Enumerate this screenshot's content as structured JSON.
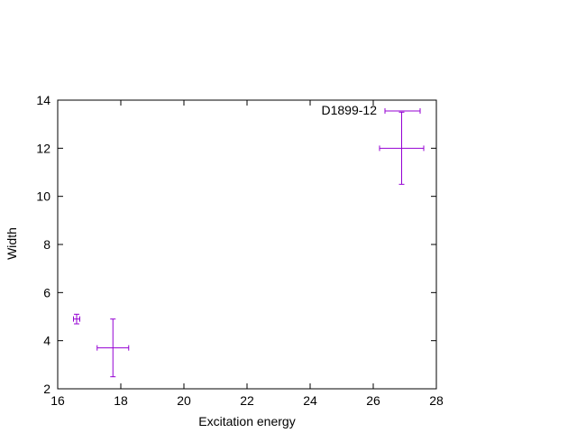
{
  "chart_data": {
    "type": "scatter",
    "title": "",
    "xlabel": "Excitation energy",
    "ylabel": "Width",
    "xlim": [
      16,
      28
    ],
    "ylim": [
      2,
      14
    ],
    "xticks": [
      16,
      18,
      20,
      22,
      24,
      26,
      28
    ],
    "yticks": [
      2,
      4,
      6,
      8,
      10,
      12,
      14
    ],
    "grid": false,
    "legend": "top-right",
    "color": "#9400d3",
    "series": [
      {
        "name": "D1899-12",
        "points": [
          {
            "x": 16.6,
            "y": 4.9,
            "xerr": 0.1,
            "yerr": 0.2
          },
          {
            "x": 17.75,
            "y": 3.7,
            "xerr": 0.5,
            "yerr": 1.2
          },
          {
            "x": 26.9,
            "y": 12.0,
            "xerr": 0.7,
            "yerr": 1.5
          }
        ]
      }
    ]
  }
}
